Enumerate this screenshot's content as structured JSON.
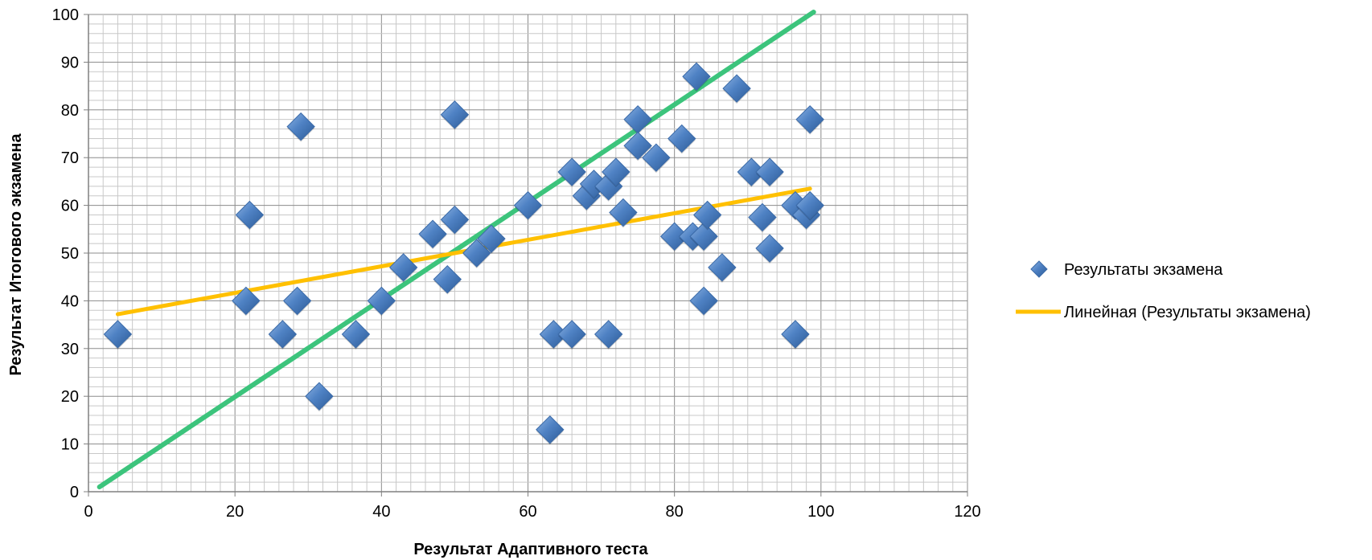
{
  "chart_data": {
    "type": "scatter",
    "xlabel": "Результат Адаптивного теста",
    "ylabel": "Результат Итогового экзамена",
    "xlim": [
      0,
      120
    ],
    "ylim": [
      0,
      100
    ],
    "x_ticks": [
      0,
      20,
      40,
      60,
      80,
      100,
      120
    ],
    "y_ticks": [
      0,
      10,
      20,
      30,
      40,
      50,
      60,
      70,
      80,
      90,
      100
    ],
    "grid": true,
    "legend_position": "right",
    "series": [
      {
        "name": "Результаты экзамена",
        "color": "#4a7ec2",
        "marker": "diamond",
        "points": [
          [
            4,
            33
          ],
          [
            21.5,
            40
          ],
          [
            22,
            58
          ],
          [
            26.5,
            33
          ],
          [
            28.5,
            40
          ],
          [
            29,
            76.5
          ],
          [
            31.5,
            20
          ],
          [
            36.5,
            33
          ],
          [
            40,
            40
          ],
          [
            43,
            47
          ],
          [
            47,
            54
          ],
          [
            49,
            44.5
          ],
          [
            50,
            79
          ],
          [
            50,
            57
          ],
          [
            53,
            50
          ],
          [
            55,
            53
          ],
          [
            60,
            60
          ],
          [
            63,
            13
          ],
          [
            63.5,
            33
          ],
          [
            66,
            33
          ],
          [
            66,
            67
          ],
          [
            68,
            62
          ],
          [
            69,
            64.5
          ],
          [
            71,
            64
          ],
          [
            71,
            33
          ],
          [
            72,
            67
          ],
          [
            73,
            58.5
          ],
          [
            75,
            78
          ],
          [
            75,
            72.5
          ],
          [
            77.5,
            70
          ],
          [
            80,
            53.5
          ],
          [
            81,
            74
          ],
          [
            82.5,
            53.5
          ],
          [
            83,
            87
          ],
          [
            84,
            53.5
          ],
          [
            84,
            40
          ],
          [
            84.5,
            58
          ],
          [
            86.5,
            47
          ],
          [
            88.5,
            84.5
          ],
          [
            90.5,
            67
          ],
          [
            92,
            57.5
          ],
          [
            93,
            67
          ],
          [
            93,
            51
          ],
          [
            96.5,
            60
          ],
          [
            96.5,
            33
          ],
          [
            98,
            58
          ],
          [
            98.5,
            60
          ],
          [
            98.5,
            78
          ]
        ]
      }
    ],
    "trendline": {
      "name": "Линейная (Результаты экзамена)",
      "color": "#ffc000",
      "start": [
        4,
        37.2
      ],
      "end": [
        98.5,
        63.5
      ]
    },
    "reference_line": {
      "color": "#3cc47c",
      "start": [
        1.5,
        1
      ],
      "end": [
        99,
        100.5
      ]
    }
  }
}
